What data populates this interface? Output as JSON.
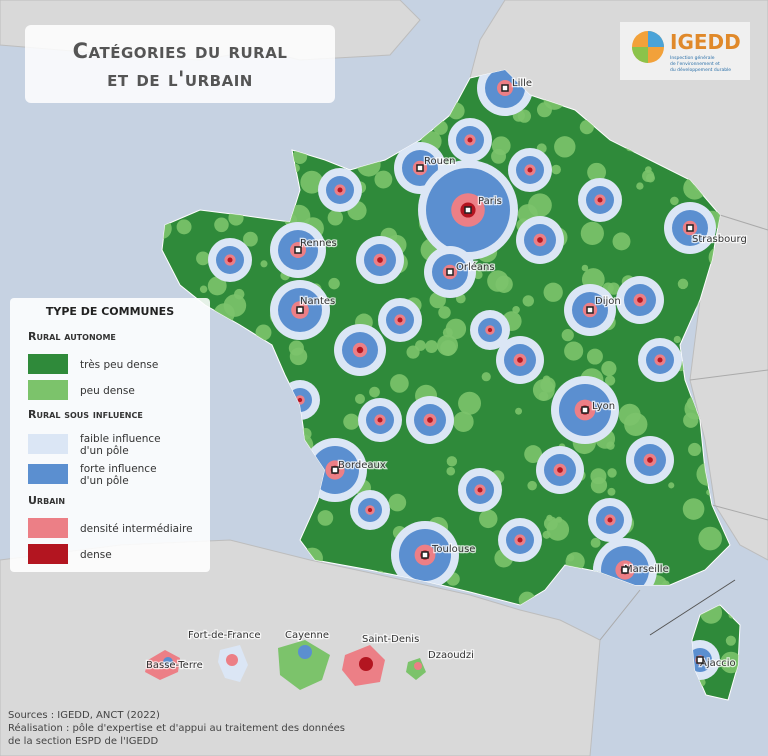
{
  "title": {
    "line1": "Catégories du rural",
    "line2": "et de l'urbain"
  },
  "logo": {
    "name": "IGEDD",
    "subtitle": [
      "Inspection générale",
      "de l'environnement et",
      "du développement durable"
    ]
  },
  "legend": {
    "title": "Type de communes",
    "groups": [
      {
        "title": "Rural autonome",
        "items": [
          {
            "label": [
              "très peu dense"
            ],
            "color": "#2f8a3a"
          },
          {
            "label": [
              "peu dense"
            ],
            "color": "#7cc36b"
          }
        ]
      },
      {
        "title": "Rural sous influence",
        "items": [
          {
            "label": [
              "faible influence",
              "d'un pôle"
            ],
            "color": "#dbe6f5"
          },
          {
            "label": [
              "forte influence",
              "d'un pôle"
            ],
            "color": "#5b8fd0"
          }
        ]
      },
      {
        "title": "Urbain",
        "items": [
          {
            "label": [
              "densité intermédiaire"
            ],
            "color": "#ec7f86"
          },
          {
            "label": [
              "dense"
            ],
            "color": "#b31520"
          }
        ]
      }
    ]
  },
  "cities": [
    "Lille",
    "Rouen",
    "Paris",
    "Strasbourg",
    "Rennes",
    "Orléans",
    "Nantes",
    "Dijon",
    "Lyon",
    "Bordeaux",
    "Toulouse",
    "Marseille",
    "Ajaccio"
  ],
  "overseas": [
    "Fort-de-France",
    "Cayenne",
    "Saint-Denis",
    "Basse-Terre",
    "Dzaoudzi"
  ],
  "sources": [
    "Sources : IGEDD, ANCT (2022)",
    "Réalisation : pôle d'expertise et d'appui au traitement des données",
    "de la section ESPD de l'IGEDD"
  ]
}
